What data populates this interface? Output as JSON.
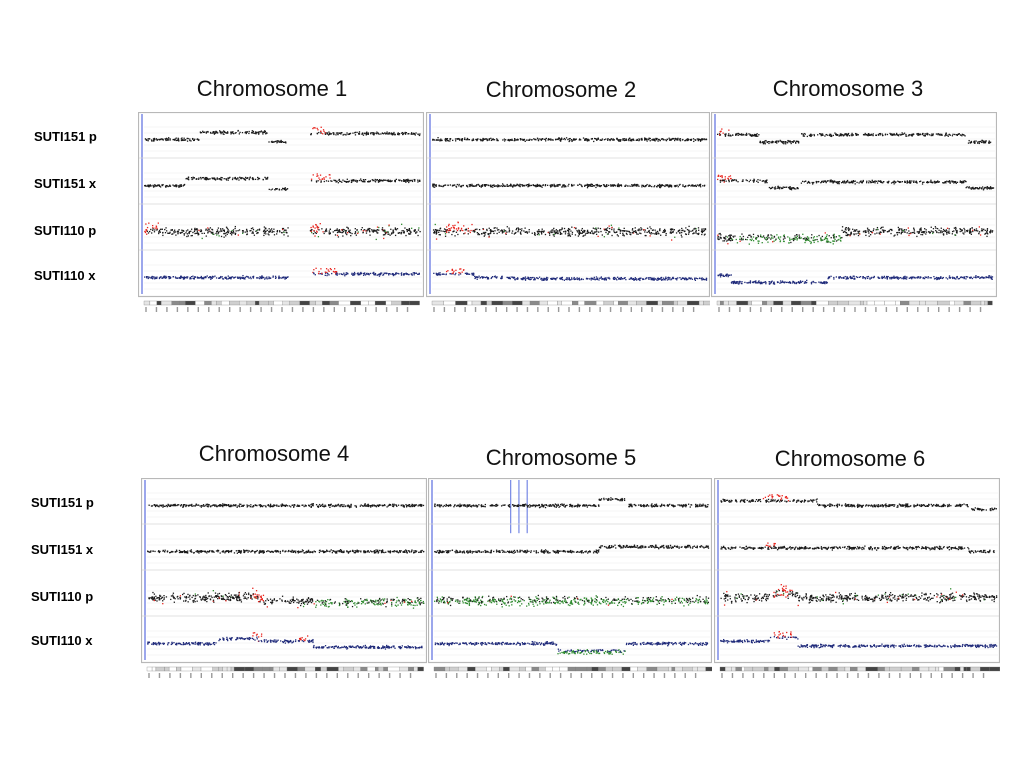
{
  "blocks": [
    {
      "chromosomes": [
        "Chromosome 1",
        "Chromosome 2",
        "Chromosome 3"
      ],
      "samples": [
        "SUTI151 p",
        "SUTI151 x",
        "SUTI110 p",
        "SUTI110 x"
      ]
    },
    {
      "chromosomes": [
        "Chromosome 4",
        "Chromosome 5",
        "Chromosome 6"
      ],
      "samples": [
        "SUTI151 p",
        "SUTI151 x",
        "SUTI110 p",
        "SUTI110 x"
      ]
    }
  ],
  "colors": {
    "normal": "#1a1a1a",
    "gain": "#e8231c",
    "loss": "#2e8b2e",
    "blue_points": "#1f2a7a",
    "panel_border": "#b8b8b8",
    "cursor_line": "#3a4fd8"
  },
  "chart_data": [
    {
      "type": "scatter",
      "title": "Chromosome 1",
      "series": [
        {
          "name": "SUTI151 p",
          "segments": [
            {
              "from": 0,
              "to": 0.2,
              "level": 0
            },
            {
              "from": 0.2,
              "to": 0.45,
              "level": 0.6
            },
            {
              "from": 0.45,
              "to": 0.52,
              "level": -0.2
            },
            {
              "from": 0.6,
              "to": 1,
              "level": 0.5
            }
          ],
          "gain_regions": [
            [
              0.6,
              0.66
            ]
          ],
          "gap": [
            0.52,
            0.6
          ]
        },
        {
          "name": "SUTI151 x",
          "segments": [
            {
              "from": 0,
              "to": 0.15,
              "level": 0
            },
            {
              "from": 0.15,
              "to": 0.45,
              "level": 0.6
            },
            {
              "from": 0.45,
              "to": 0.52,
              "level": -0.3
            },
            {
              "from": 0.6,
              "to": 1,
              "level": 0.4
            }
          ],
          "gain_regions": [
            [
              0.6,
              0.68
            ]
          ],
          "gap": [
            0.52,
            0.6
          ]
        },
        {
          "name": "SUTI110 p",
          "segments": [
            {
              "from": 0,
              "to": 1,
              "level": 0
            }
          ],
          "gain_regions": [
            [
              0,
              0.05
            ],
            [
              0.6,
              0.65
            ]
          ],
          "noisy": true,
          "gap": [
            0.52,
            0.6
          ]
        },
        {
          "name": "SUTI110 x",
          "segments": [
            {
              "from": 0,
              "to": 0.52,
              "level": 0
            },
            {
              "from": 0.6,
              "to": 1,
              "level": 0.3
            }
          ],
          "gain_regions": [
            [
              0.6,
              0.7
            ]
          ],
          "blue": true,
          "gap": [
            0.52,
            0.6
          ]
        }
      ]
    },
    {
      "type": "scatter",
      "title": "Chromosome 2",
      "series": [
        {
          "name": "SUTI151 p",
          "segments": [
            {
              "from": 0,
              "to": 1,
              "level": 0
            }
          ],
          "gain_regions": []
        },
        {
          "name": "SUTI151 x",
          "segments": [
            {
              "from": 0,
              "to": 1,
              "level": 0
            }
          ],
          "gain_regions": []
        },
        {
          "name": "SUTI110 p",
          "segments": [
            {
              "from": 0,
              "to": 1,
              "level": 0
            }
          ],
          "gain_regions": [
            [
              0.05,
              0.15
            ]
          ],
          "noisy": true
        },
        {
          "name": "SUTI110 x",
          "segments": [
            {
              "from": 0,
              "to": 0.15,
              "level": 0.3
            },
            {
              "from": 0.15,
              "to": 0.3,
              "level": 0
            },
            {
              "from": 0.3,
              "to": 1,
              "level": -0.1
            }
          ],
          "gain_regions": [
            [
              0.05,
              0.12
            ]
          ],
          "blue": true
        }
      ]
    },
    {
      "type": "scatter",
      "title": "Chromosome 3",
      "series": [
        {
          "name": "SUTI151 p",
          "segments": [
            {
              "from": 0,
              "to": 0.15,
              "level": 0.4
            },
            {
              "from": 0.15,
              "to": 0.3,
              "level": -0.2
            },
            {
              "from": 0.3,
              "to": 0.9,
              "level": 0.4
            },
            {
              "from": 0.9,
              "to": 1,
              "level": -0.2
            }
          ],
          "gain_regions": [
            [
              0,
              0.05
            ]
          ]
        },
        {
          "name": "SUTI151 x",
          "segments": [
            {
              "from": 0,
              "to": 0.18,
              "level": 0.4
            },
            {
              "from": 0.18,
              "to": 0.3,
              "level": -0.2
            },
            {
              "from": 0.3,
              "to": 0.9,
              "level": 0.3
            },
            {
              "from": 0.9,
              "to": 1,
              "level": -0.2
            }
          ],
          "gain_regions": [
            [
              0,
              0.05
            ]
          ]
        },
        {
          "name": "SUTI110 p",
          "segments": [
            {
              "from": 0,
              "to": 0.45,
              "level": -0.5
            },
            {
              "from": 0.45,
              "to": 1,
              "level": 0
            }
          ],
          "gain_regions": [],
          "loss_regions": [
            [
              0.05,
              0.45
            ]
          ],
          "noisy": true
        },
        {
          "name": "SUTI110 x",
          "segments": [
            {
              "from": 0,
              "to": 0.05,
              "level": 0.2
            },
            {
              "from": 0.05,
              "to": 0.4,
              "level": -0.4
            },
            {
              "from": 0.4,
              "to": 1,
              "level": 0
            }
          ],
          "gain_regions": [],
          "blue": true
        }
      ]
    },
    {
      "type": "scatter",
      "title": "Chromosome 4",
      "series": [
        {
          "name": "SUTI151 p",
          "segments": [
            {
              "from": 0,
              "to": 1,
              "level": 0
            }
          ],
          "gain_regions": []
        },
        {
          "name": "SUTI151 x",
          "segments": [
            {
              "from": 0,
              "to": 1,
              "level": 0
            }
          ],
          "gain_regions": []
        },
        {
          "name": "SUTI110 p",
          "segments": [
            {
              "from": 0,
              "to": 0.4,
              "level": 0
            },
            {
              "from": 0.4,
              "to": 1,
              "level": -0.3
            }
          ],
          "gain_regions": [
            [
              0.38,
              0.42
            ]
          ],
          "loss_regions": [
            [
              0.6,
              1
            ]
          ],
          "noisy": true
        },
        {
          "name": "SUTI110 x",
          "segments": [
            {
              "from": 0,
              "to": 0.25,
              "level": 0
            },
            {
              "from": 0.25,
              "to": 0.4,
              "level": 0.4
            },
            {
              "from": 0.4,
              "to": 0.6,
              "level": 0.2
            },
            {
              "from": 0.6,
              "to": 1,
              "level": -0.3
            }
          ],
          "gain_regions": [
            [
              0.38,
              0.42
            ],
            [
              0.55,
              0.58
            ]
          ],
          "blue": true
        }
      ]
    },
    {
      "type": "scatter",
      "title": "Chromosome 5",
      "series": [
        {
          "name": "SUTI151 p",
          "segments": [
            {
              "from": 0,
              "to": 0.6,
              "level": 0
            },
            {
              "from": 0.6,
              "to": 0.7,
              "level": 0.5
            },
            {
              "from": 0.7,
              "to": 1,
              "level": 0
            }
          ],
          "gain_regions": [],
          "blue_lines": [
            0.28,
            0.31,
            0.34
          ]
        },
        {
          "name": "SUTI151 x",
          "segments": [
            {
              "from": 0,
              "to": 0.6,
              "level": 0
            },
            {
              "from": 0.6,
              "to": 1,
              "level": 0.4
            }
          ],
          "gain_regions": []
        },
        {
          "name": "SUTI110 p",
          "segments": [
            {
              "from": 0,
              "to": 1,
              "level": -0.2
            }
          ],
          "gain_regions": [],
          "loss_regions": [
            [
              0,
              1
            ]
          ],
          "noisy": true
        },
        {
          "name": "SUTI110 x",
          "segments": [
            {
              "from": 0,
              "to": 0.45,
              "level": 0
            },
            {
              "from": 0.45,
              "to": 0.7,
              "level": -0.6
            },
            {
              "from": 0.7,
              "to": 1,
              "level": 0
            }
          ],
          "gain_regions": [],
          "blue": true,
          "loss_regions": [
            [
              0.45,
              0.7
            ]
          ]
        }
      ]
    },
    {
      "type": "scatter",
      "title": "Chromosome 6",
      "series": [
        {
          "name": "SUTI151 p",
          "segments": [
            {
              "from": 0,
              "to": 0.35,
              "level": 0.4
            },
            {
              "from": 0.35,
              "to": 0.9,
              "level": 0
            },
            {
              "from": 0.9,
              "to": 1,
              "level": -0.3
            }
          ],
          "gain_regions": [
            [
              0.15,
              0.25
            ]
          ]
        },
        {
          "name": "SUTI151 x",
          "segments": [
            {
              "from": 0,
              "to": 0.9,
              "level": 0.3
            },
            {
              "from": 0.9,
              "to": 1,
              "level": 0
            }
          ],
          "gain_regions": [
            [
              0.15,
              0.2
            ]
          ]
        },
        {
          "name": "SUTI110 p",
          "segments": [
            {
              "from": 0,
              "to": 0.2,
              "level": 0
            },
            {
              "from": 0.2,
              "to": 0.28,
              "level": 0.3
            },
            {
              "from": 0.28,
              "to": 1,
              "level": 0
            }
          ],
          "gain_regions": [
            [
              0.18,
              0.26
            ]
          ],
          "noisy": true
        },
        {
          "name": "SUTI110 x",
          "segments": [
            {
              "from": 0,
              "to": 0.18,
              "level": 0.2
            },
            {
              "from": 0.18,
              "to": 0.28,
              "level": 0.5
            },
            {
              "from": 0.28,
              "to": 1,
              "level": -0.2
            }
          ],
          "gain_regions": [
            [
              0.18,
              0.26
            ]
          ],
          "blue": true
        }
      ]
    }
  ]
}
